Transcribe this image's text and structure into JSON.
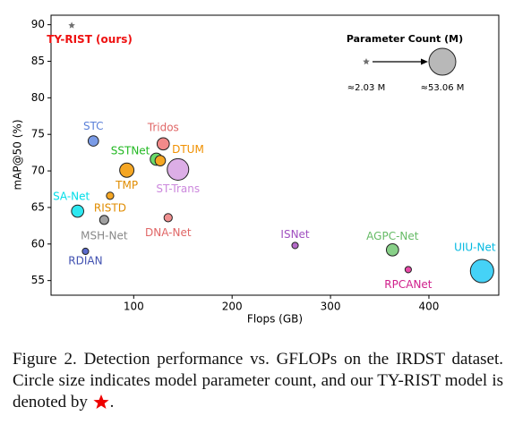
{
  "chart_data": {
    "type": "scatter",
    "xlabel": "Flops (GB)",
    "ylabel": "mAP@50 (%)",
    "xlim": [
      16,
      471
    ],
    "ylim": [
      53,
      91.3
    ],
    "xticks": [
      100,
      200,
      300,
      400
    ],
    "yticks": [
      55,
      60,
      65,
      70,
      75,
      80,
      85,
      90
    ],
    "labels": [
      "TY-RIST (ours)",
      "STC",
      "Tridos",
      "SSTNet",
      "DTUM",
      "ST-Trans",
      "TMP",
      "RISTD",
      "SA-Net",
      "MSH-Net",
      "DNA-Net",
      "RDIAN",
      "ISNet",
      "AGPC-Net",
      "RPCANet",
      "UIU-Net"
    ],
    "x": [
      37,
      59,
      130,
      123,
      127,
      145,
      93,
      76,
      43,
      70,
      135,
      51,
      264,
      363,
      379,
      454
    ],
    "values": [
      89.9,
      74.1,
      73.7,
      71.6,
      71.4,
      70.2,
      70.1,
      66.6,
      64.5,
      63.3,
      63.6,
      59.0,
      59.8,
      59.2,
      56.5,
      56.3
    ],
    "sizes": [
      2.03,
      8,
      11,
      11,
      8,
      34,
      15,
      4,
      11,
      6,
      5,
      3,
      3,
      11,
      3,
      40
    ],
    "markers": [
      "star",
      "circle",
      "circle",
      "circle",
      "circle",
      "circle",
      "circle",
      "circle",
      "circle",
      "circle",
      "circle",
      "circle",
      "circle",
      "circle",
      "circle",
      "circle"
    ],
    "colors": [
      "#707070",
      "#7a9be6",
      "#f28a8a",
      "#6adb6a",
      "#f5a623",
      "#dcaee6",
      "#f5a623",
      "#f5a623",
      "#2de8f0",
      "#a0a0a0",
      "#f09090",
      "#5a6acc",
      "#b46ac8",
      "#88d088",
      "#e84aa8",
      "#45d2f7"
    ],
    "label_colors": [
      "#ee1111",
      "#5b80d8",
      "#e06666",
      "#22b822",
      "#f09000",
      "#cc88dd",
      "#e08c00",
      "#e08c00",
      "#00dde8",
      "#888888",
      "#e06666",
      "#4050b0",
      "#a050c0",
      "#66bb66",
      "#d0208c",
      "#00b8e0"
    ],
    "size_legend_title": "Parameter Count (M)",
    "size_legend": [
      {
        "value": 2.03,
        "label": "≈2.03 M"
      },
      {
        "value": 53.06,
        "label": "≈53.06 M"
      }
    ]
  },
  "caption": "Figure 2.  Detection performance vs. GFLOPs on the IRDST dataset. Circle size indicates model parameter count, and our TY-RIST model is denoted by"
}
